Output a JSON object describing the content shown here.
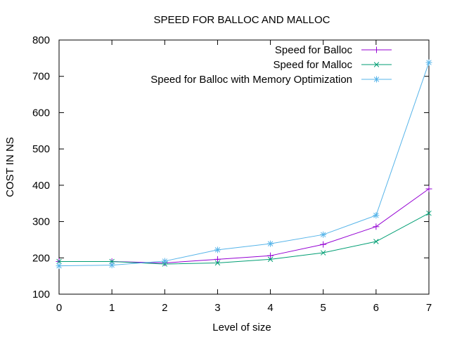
{
  "chart_data": {
    "type": "line",
    "title": "SPEED FOR BALLOC AND MALLOC",
    "xlabel": "Level of size",
    "ylabel": "COST IN NS",
    "xlim": [
      0,
      7
    ],
    "ylim": [
      100,
      800
    ],
    "x_ticks": [
      0,
      1,
      2,
      3,
      4,
      5,
      6,
      7
    ],
    "y_ticks": [
      100,
      200,
      300,
      400,
      500,
      600,
      700,
      800
    ],
    "grid": false,
    "legend_position": "top-right",
    "x": [
      0,
      1,
      2,
      3,
      4,
      5,
      6,
      7
    ],
    "series": [
      {
        "name": "Speed for Balloc",
        "color": "#9400d3",
        "marker": "plus",
        "values": [
          190,
          190,
          186,
          196,
          206,
          237,
          286,
          390
        ]
      },
      {
        "name": "Speed for Malloc",
        "color": "#009e73",
        "marker": "cross",
        "values": [
          190,
          190,
          183,
          186,
          196,
          214,
          245,
          323
        ]
      },
      {
        "name": "Speed for Balloc with Memory Optimization",
        "color": "#56b4e9",
        "marker": "star",
        "values": [
          178,
          180,
          191,
          222,
          239,
          264,
          317,
          738
        ]
      }
    ]
  }
}
